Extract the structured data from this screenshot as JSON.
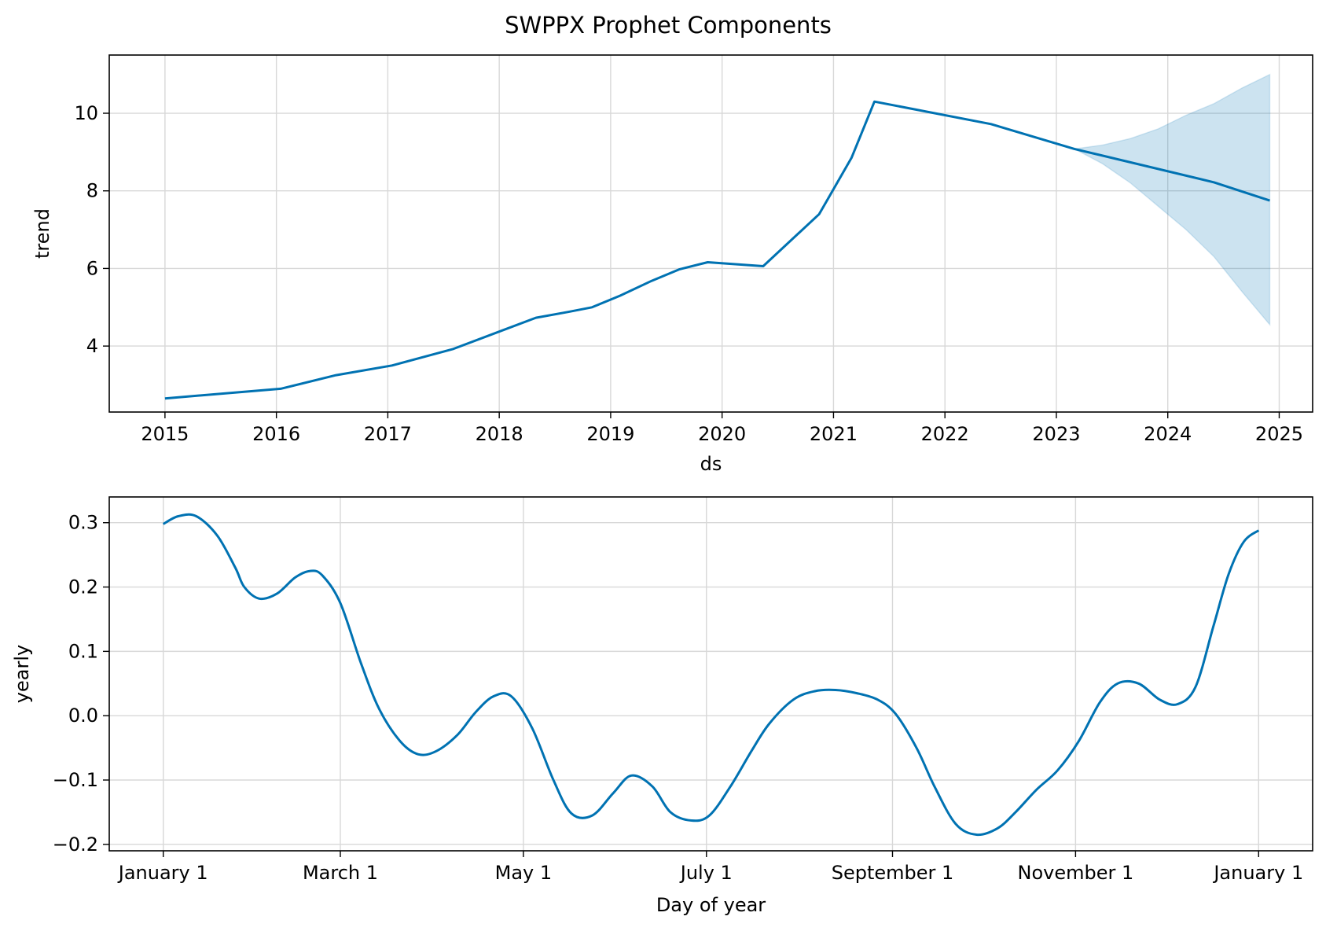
{
  "title": "SWPPX Prophet Components",
  "colors": {
    "line": "#0072B2",
    "band": "#0072B2",
    "grid": "#d8d8d8"
  },
  "chart_data": [
    {
      "type": "line",
      "xlabel": "ds",
      "ylabel": "trend",
      "x_ticks": [
        "2015",
        "2016",
        "2017",
        "2018",
        "2019",
        "2020",
        "2021",
        "2022",
        "2023",
        "2024",
        "2025"
      ],
      "y_ticks": [
        "4",
        "6",
        "8",
        "10"
      ],
      "xlim": [
        2014.5,
        2025.3
      ],
      "ylim": [
        2.3,
        11.5
      ],
      "grid": true,
      "series": [
        {
          "x": [
            "2015-01-01",
            "2016-01-15",
            "2016-07-15",
            "2017-01-15",
            "2017-08-01",
            "2018-05-01",
            "2018-08-15",
            "2018-11-01",
            "2019-02-01",
            "2019-05-15",
            "2019-08-15",
            "2019-11-15",
            "2020-05-15",
            "2020-11-15",
            "2021-03-01",
            "2021-05-15",
            "2022-06-01",
            "2023-03-01",
            "2024-06-01",
            "2024-12-01"
          ],
          "y": [
            2.65,
            2.9,
            3.25,
            3.5,
            3.92,
            4.73,
            4.88,
            5.0,
            5.3,
            5.68,
            5.98,
            6.16,
            6.06,
            7.4,
            8.85,
            10.3,
            9.72,
            9.08,
            8.22,
            7.75
          ]
        }
      ],
      "uncertainty_band": {
        "x": [
          "2023-03-01",
          "2023-06-01",
          "2023-09-01",
          "2023-12-01",
          "2024-03-01",
          "2024-06-01",
          "2024-09-01",
          "2024-12-01"
        ],
        "upper": [
          9.08,
          9.18,
          9.35,
          9.6,
          9.95,
          10.25,
          10.65,
          11.0
        ],
        "lower": [
          9.08,
          8.7,
          8.2,
          7.6,
          7.0,
          6.3,
          5.4,
          4.55
        ]
      }
    },
    {
      "type": "line",
      "xlabel": "Day of year",
      "ylabel": "yearly",
      "x_ticks": [
        "January 1",
        "March 1",
        "May 1",
        "July 1",
        "September 1",
        "November 1",
        "January 1"
      ],
      "x_tick_days": [
        0,
        59,
        120,
        181,
        243,
        304,
        365
      ],
      "y_ticks": [
        "−0.2",
        "−0.1",
        "0.0",
        "0.1",
        "0.2",
        "0.3"
      ],
      "xlim": [
        -18,
        383
      ],
      "ylim": [
        -0.21,
        0.34
      ],
      "grid": true,
      "series": [
        {
          "x": [
            0,
            5,
            11,
            18,
            24,
            27,
            32,
            38,
            44,
            49,
            53,
            59,
            66,
            72,
            79,
            85,
            91,
            98,
            104,
            110,
            116,
            123,
            130,
            136,
            143,
            150,
            156,
            163,
            169,
            176,
            182,
            189,
            196,
            202,
            210,
            217,
            224,
            231,
            238,
            244,
            251,
            257,
            264,
            271,
            278,
            284,
            291,
            298,
            305,
            312,
            318,
            325,
            332,
            338,
            344,
            350,
            355,
            360,
            365
          ],
          "y": [
            0.298,
            0.31,
            0.31,
            0.28,
            0.23,
            0.2,
            0.182,
            0.19,
            0.215,
            0.225,
            0.218,
            0.175,
            0.08,
            0.01,
            -0.04,
            -0.06,
            -0.055,
            -0.03,
            0.005,
            0.03,
            0.03,
            -0.02,
            -0.1,
            -0.152,
            -0.155,
            -0.12,
            -0.093,
            -0.11,
            -0.15,
            -0.163,
            -0.155,
            -0.11,
            -0.055,
            -0.012,
            0.025,
            0.038,
            0.04,
            0.035,
            0.025,
            0.003,
            -0.05,
            -0.11,
            -0.168,
            -0.185,
            -0.175,
            -0.15,
            -0.115,
            -0.085,
            -0.04,
            0.02,
            0.05,
            0.05,
            0.025,
            0.018,
            0.045,
            0.14,
            0.22,
            0.27,
            0.288
          ]
        }
      ]
    }
  ]
}
